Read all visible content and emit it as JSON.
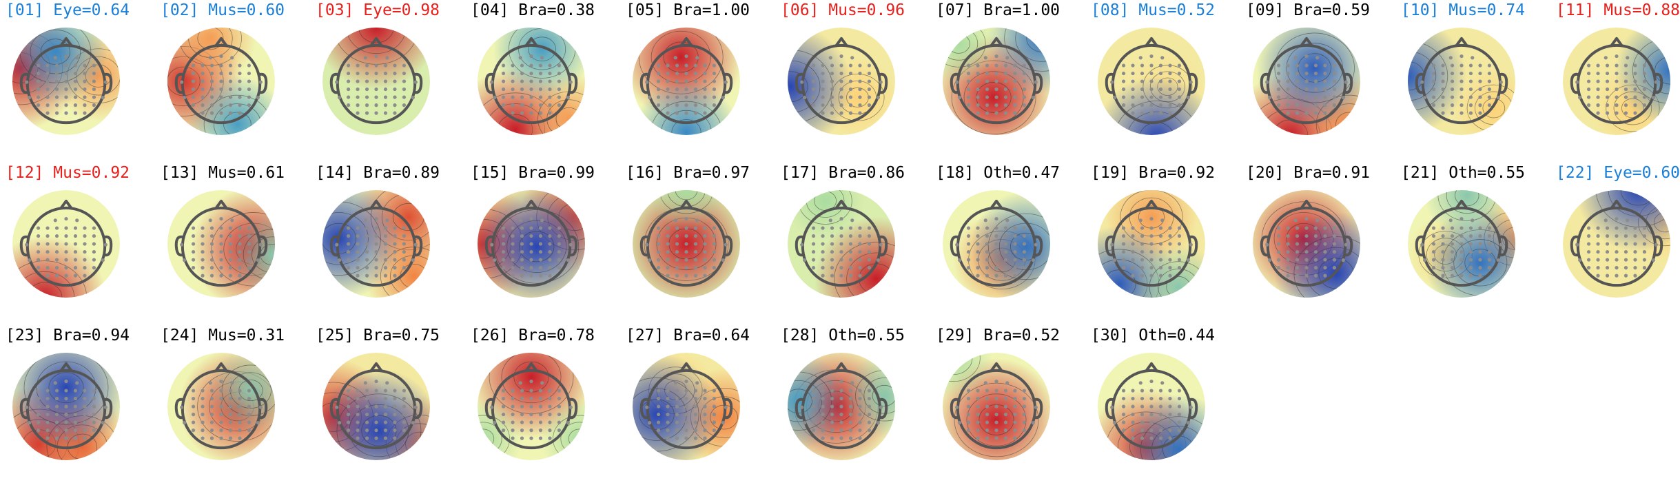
{
  "colors": {
    "brain": "#000000",
    "eye": "#1a7fd9",
    "muscle_red": "#e8201c",
    "muscle_blue": "#1a7fd9",
    "electrode": "#8c8c8c",
    "head": "#555555",
    "contour": "#333333"
  },
  "components": [
    {
      "id": "[01]",
      "label": "Eye=0.64",
      "cls": "eye",
      "hot": [
        [
          -0.85,
          -0.25,
          1.0
        ],
        [
          0.6,
          -0.1,
          0.5
        ]
      ],
      "cold": [
        [
          -0.2,
          -0.55,
          0.7
        ]
      ],
      "base": 0.5
    },
    {
      "id": "[02]",
      "label": "Mus=0.60",
      "cls": "mus-blue",
      "hot": [
        [
          -0.7,
          0.0,
          0.9
        ],
        [
          -0.2,
          -0.8,
          0.5
        ]
      ],
      "cold": [
        [
          0.3,
          0.8,
          0.6
        ]
      ],
      "base": 0.5
    },
    {
      "id": "[03]",
      "label": "Eye=0.98",
      "cls": "mus-red",
      "hot": [
        [
          0.0,
          -1.0,
          1.0
        ]
      ],
      "cold": [],
      "base": 0.45
    },
    {
      "id": "[04]",
      "label": "Bra=0.38",
      "cls": "brain",
      "hot": [
        [
          -0.3,
          0.9,
          1.0
        ],
        [
          0.7,
          0.7,
          0.5
        ]
      ],
      "cold": [
        [
          0.2,
          -0.6,
          0.6
        ]
      ],
      "base": 0.5
    },
    {
      "id": "[05]",
      "label": "Bra=1.00",
      "cls": "brain",
      "hot": [
        [
          -0.1,
          -0.45,
          1.0
        ]
      ],
      "cold": [
        [
          0.0,
          0.95,
          0.7
        ]
      ],
      "base": 0.5
    },
    {
      "id": "[06]",
      "label": "Mus=0.96",
      "cls": "mus-red",
      "hot": [
        [
          0.3,
          0.3,
          0.3
        ]
      ],
      "cold": [
        [
          -0.95,
          0.1,
          1.0
        ]
      ],
      "base": 0.55
    },
    {
      "id": "[07]",
      "label": "Bra=1.00",
      "cls": "brain",
      "hot": [
        [
          -0.05,
          0.3,
          1.0
        ]
      ],
      "cold": [
        [
          0.85,
          -0.8,
          0.8
        ],
        [
          -0.7,
          -0.7,
          0.3
        ]
      ],
      "base": 0.5
    },
    {
      "id": "[08]",
      "label": "Mus=0.52",
      "cls": "mus-blue",
      "hot": [
        [
          0.3,
          0.1,
          0.2
        ]
      ],
      "cold": [
        [
          0.1,
          1.05,
          1.0
        ]
      ],
      "base": 0.55
    },
    {
      "id": "[09]",
      "label": "Bra=0.59",
      "cls": "brain",
      "hot": [
        [
          -0.3,
          1.0,
          1.0
        ],
        [
          0.8,
          0.8,
          0.6
        ]
      ],
      "cold": [
        [
          0.15,
          -0.25,
          0.9
        ]
      ],
      "base": 0.5
    },
    {
      "id": "[10]",
      "label": "Mus=0.74",
      "cls": "mus-blue",
      "hot": [
        [
          0.6,
          0.5,
          0.3
        ]
      ],
      "cold": [
        [
          -1.0,
          -0.1,
          0.9
        ]
      ],
      "base": 0.55
    },
    {
      "id": "[11]",
      "label": "Mus=0.88",
      "cls": "mus-red",
      "hot": [
        [
          0.3,
          0.5,
          0.3
        ]
      ],
      "cold": [
        [
          1.0,
          -0.2,
          0.8
        ]
      ],
      "base": 0.55
    },
    {
      "id": "[12]",
      "label": "Mus=0.92",
      "cls": "mus-red",
      "hot": [
        [
          -0.4,
          1.0,
          1.0
        ]
      ],
      "cold": [],
      "base": 0.5
    },
    {
      "id": "[13]",
      "label": "Mus=0.61",
      "cls": "brain",
      "hot": [
        [
          0.6,
          0.1,
          1.0
        ]
      ],
      "cold": [
        [
          0.95,
          0.2,
          0.4
        ]
      ],
      "base": 0.5
    },
    {
      "id": "[14]",
      "label": "Bra=0.89",
      "cls": "brain",
      "hot": [
        [
          0.6,
          -0.5,
          0.8
        ],
        [
          0.7,
          0.6,
          0.6
        ]
      ],
      "cold": [
        [
          -0.7,
          -0.1,
          1.0
        ]
      ],
      "base": 0.5
    },
    {
      "id": "[15]",
      "label": "Bra=0.99",
      "cls": "brain",
      "hot": [
        [
          -0.9,
          0.0,
          0.9
        ],
        [
          0.8,
          -0.5,
          0.8
        ]
      ],
      "cold": [
        [
          0.1,
          0.05,
          1.0
        ]
      ],
      "base": 0.55
    },
    {
      "id": "[16]",
      "label": "Bra=0.97",
      "cls": "brain",
      "hot": [
        [
          0.0,
          0.0,
          1.0
        ]
      ],
      "cold": [
        [
          0.0,
          -1.0,
          0.3
        ]
      ],
      "base": 0.45
    },
    {
      "id": "[17]",
      "label": "Bra=0.86",
      "cls": "brain",
      "hot": [
        [
          0.65,
          0.65,
          1.0
        ]
      ],
      "cold": [
        [
          -0.3,
          -0.8,
          0.3
        ]
      ],
      "base": 0.45
    },
    {
      "id": "[18]",
      "label": "Oth=0.47",
      "cls": "brain",
      "hot": [
        [
          0.1,
          0.3,
          0.6
        ]
      ],
      "cold": [
        [
          0.55,
          0.05,
          0.8
        ]
      ],
      "base": 0.5
    },
    {
      "id": "[19]",
      "label": "Bra=0.92",
      "cls": "brain",
      "hot": [
        [
          0.0,
          -0.5,
          0.5
        ]
      ],
      "cold": [
        [
          -0.6,
          0.75,
          0.9
        ],
        [
          0.5,
          0.8,
          0.4
        ]
      ],
      "base": 0.55
    },
    {
      "id": "[20]",
      "label": "Bra=0.91",
      "cls": "brain",
      "hot": [
        [
          -0.05,
          -0.1,
          1.0
        ]
      ],
      "cold": [
        [
          0.55,
          0.55,
          1.0
        ]
      ],
      "base": 0.5
    },
    {
      "id": "[21]",
      "label": "Oth=0.55",
      "cls": "brain",
      "hot": [
        [
          1.0,
          -0.1,
          0.5
        ],
        [
          -0.3,
          0.2,
          0.3
        ]
      ],
      "cold": [
        [
          0.35,
          0.35,
          0.8
        ],
        [
          0.1,
          -0.9,
          0.4
        ]
      ],
      "base": 0.5
    },
    {
      "id": "[22]",
      "label": "Eye=0.60",
      "cls": "eye",
      "hot": [
        [
          0.9,
          -0.4,
          0.3
        ]
      ],
      "cold": [
        [
          0.4,
          -1.0,
          1.0
        ]
      ],
      "base": 0.55
    },
    {
      "id": "[23]",
      "label": "Bra=0.94",
      "cls": "brain",
      "hot": [
        [
          -0.5,
          0.7,
          0.9
        ],
        [
          0.3,
          0.75,
          0.7
        ]
      ],
      "cold": [
        [
          0.0,
          -0.35,
          1.0
        ]
      ],
      "base": 0.5
    },
    {
      "id": "[24]",
      "label": "Mus=0.31",
      "cls": "brain",
      "hot": [
        [
          0.3,
          0.0,
          0.9
        ]
      ],
      "cold": [
        [
          0.55,
          -0.3,
          0.4
        ]
      ],
      "base": 0.5
    },
    {
      "id": "[25]",
      "label": "Bra=0.75",
      "cls": "brain",
      "hot": [
        [
          -0.8,
          0.2,
          0.9
        ],
        [
          0.8,
          0.7,
          0.6
        ]
      ],
      "cold": [
        [
          0.05,
          0.45,
          1.0
        ]
      ],
      "base": 0.55
    },
    {
      "id": "[26]",
      "label": "Bra=0.78",
      "cls": "brain",
      "hot": [
        [
          0.0,
          -0.55,
          1.0
        ]
      ],
      "cold": [
        [
          -0.9,
          0.6,
          0.3
        ],
        [
          0.9,
          0.6,
          0.3
        ]
      ],
      "base": 0.5
    },
    {
      "id": "[27]",
      "label": "Bra=0.64",
      "cls": "brain",
      "hot": [
        [
          0.7,
          0.2,
          0.6
        ],
        [
          -0.2,
          -0.3,
          0.3
        ]
      ],
      "cold": [
        [
          -0.55,
          0.15,
          1.0
        ]
      ],
      "base": 0.55
    },
    {
      "id": "[28]",
      "label": "Oth=0.55",
      "cls": "brain",
      "hot": [
        [
          -0.1,
          0.0,
          1.0
        ]
      ],
      "cold": [
        [
          -0.8,
          -0.1,
          0.6
        ],
        [
          0.8,
          -0.2,
          0.4
        ]
      ],
      "base": 0.5
    },
    {
      "id": "[29]",
      "label": "Bra=0.52",
      "cls": "brain",
      "hot": [
        [
          0.0,
          0.25,
          1.0
        ]
      ],
      "cold": [
        [
          -0.8,
          -0.9,
          0.3
        ]
      ],
      "base": 0.5
    },
    {
      "id": "[30]",
      "label": "Oth=0.44",
      "cls": "brain",
      "hot": [
        [
          -0.1,
          0.75,
          0.9
        ]
      ],
      "cold": [
        [
          0.5,
          0.8,
          0.8
        ]
      ],
      "base": 0.5
    }
  ]
}
